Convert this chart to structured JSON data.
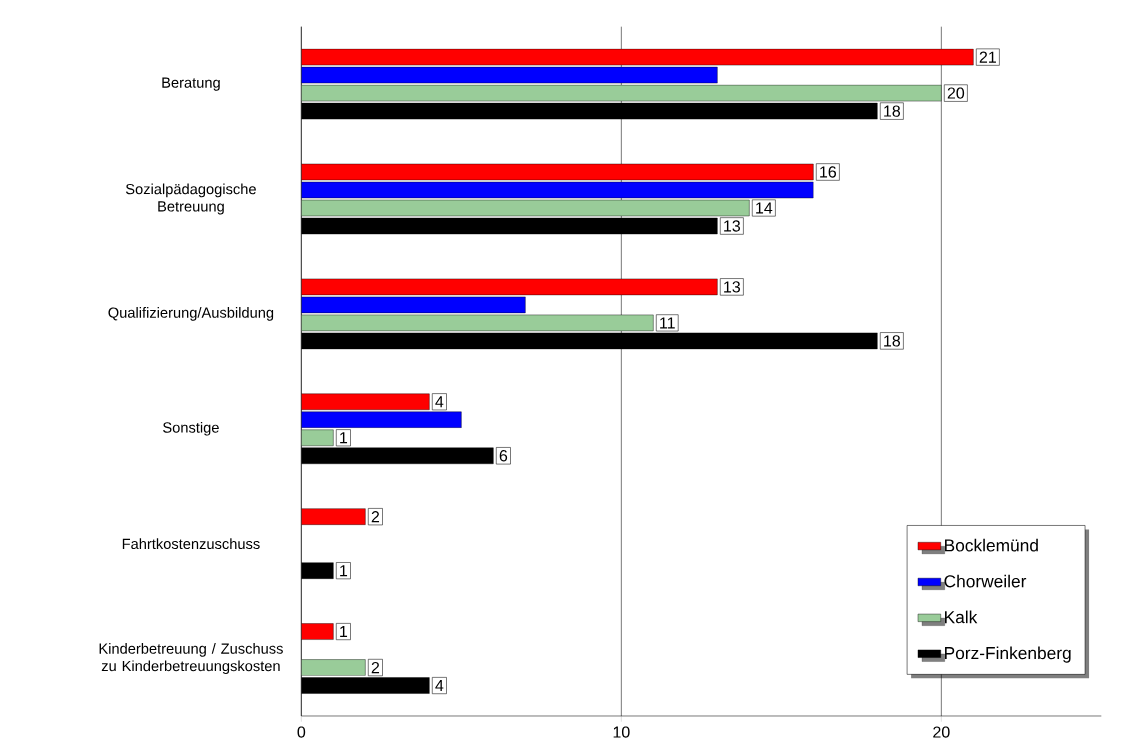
{
  "chart_data": {
    "type": "bar",
    "orientation": "horizontal",
    "categories": [
      "Beratung",
      "Sozialpädagogische Betreuung",
      "Qualifizierung/Ausbildung",
      "Sonstige",
      "Fahrtkostenzuschuss",
      "Kinderbetreuung / Zuschuss zu Kinderbetreuungskosten"
    ],
    "series": [
      {
        "name": "Bocklemünd",
        "color": "#ff0000",
        "values": [
          21,
          16,
          13,
          4,
          2,
          1
        ],
        "value_labels": [
          "21",
          "16",
          "13",
          "4",
          "2",
          "1"
        ]
      },
      {
        "name": "Chorweiler",
        "color": "#0000ff",
        "values": [
          13,
          16,
          7,
          5,
          null,
          null
        ],
        "value_labels": [
          null,
          null,
          null,
          null,
          null,
          null
        ]
      },
      {
        "name": "Kalk",
        "color": "#99cc99",
        "values": [
          20,
          14,
          11,
          1,
          null,
          2
        ],
        "value_labels": [
          "20",
          "14",
          "11",
          "1",
          null,
          "2"
        ]
      },
      {
        "name": "Porz-Finkenberg",
        "color": "#000000",
        "values": [
          18,
          13,
          18,
          6,
          1,
          4
        ],
        "value_labels": [
          "18",
          "13",
          "18",
          "6",
          "1",
          "4"
        ]
      }
    ],
    "xlim": [
      0,
      25
    ],
    "xticks": [
      0,
      10,
      20
    ],
    "grid": "x",
    "legend": "bottom right"
  }
}
